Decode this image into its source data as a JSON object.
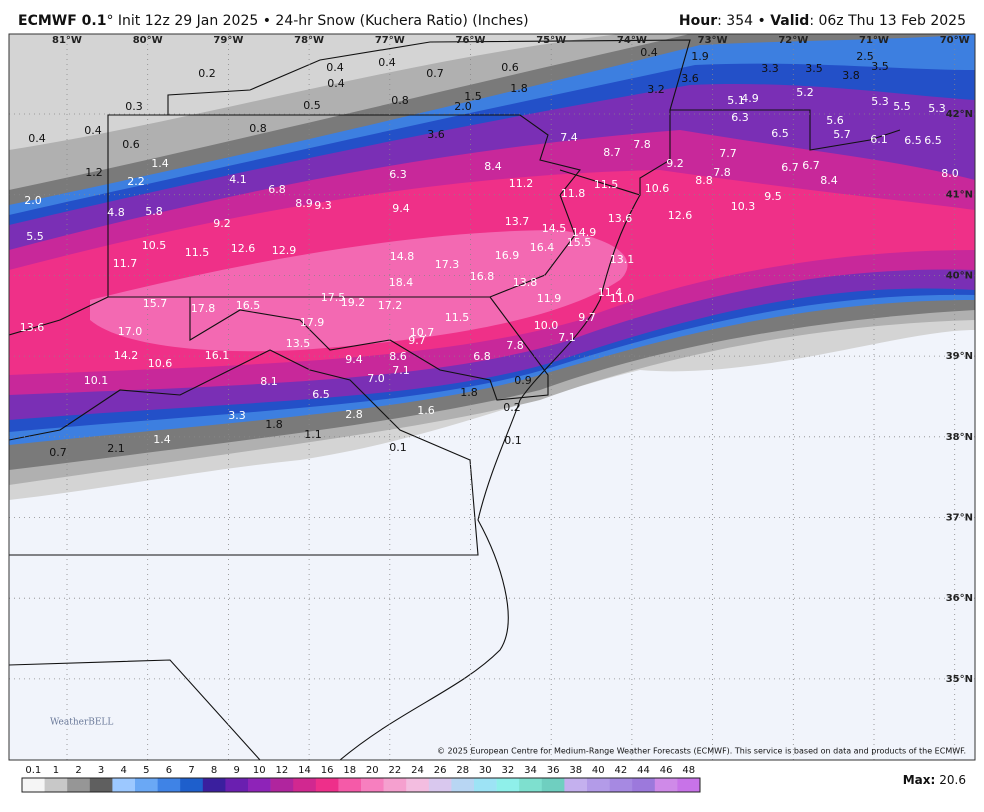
{
  "header": {
    "title_bold": "ECMWF 0.1",
    "title_rest": "° Init 12z 29 Jan 2025 • 24-hr Snow (Kuchera Ratio) (Inches)",
    "hour_key": "Hour",
    "hour_value": ": 354 • ",
    "valid_key": "Valid",
    "valid_value": ": 06z Thu 13 Feb 2025"
  },
  "map": {
    "longitudes": [
      "81°W",
      "80°W",
      "79°W",
      "78°W",
      "77°W",
      "76°W",
      "75°W",
      "74°W",
      "73°W",
      "72°W",
      "71°W",
      "70°W"
    ],
    "latitudes": [
      "42°N",
      "41°N",
      "40°N",
      "39°N",
      "38°N",
      "37°N",
      "36°N",
      "35°N"
    ],
    "snow_labels": [
      "0.4",
      "0.4",
      "0.4",
      "0.7",
      "0.6",
      "0.4",
      "1.9",
      "0.2",
      "0.5",
      "0.8",
      "2.0",
      "1.5",
      "1.8",
      "3.2",
      "3.6",
      "3.3",
      "3.5",
      "2.5",
      "3.5",
      "3.8",
      "0.3",
      "0.4",
      "0.4",
      "0.6",
      "0.8",
      "3.6",
      "5.1",
      "4.9",
      "5.2",
      "5.3",
      "5.5",
      "5.3",
      "6.3",
      "6.5",
      "5.6",
      "5.7",
      "6.1",
      "6.5",
      "6.5",
      "7.4",
      "8.7",
      "7.8",
      "9.2",
      "7.7",
      "6.7",
      "6.7",
      "8.0",
      "8.4",
      "7.8",
      "8.8",
      "10.6",
      "10.3",
      "9.5",
      "12.6",
      "13.6",
      "11.5",
      "11.8",
      "11.2",
      "8.4",
      "6.3",
      "1.4",
      "1.2",
      "2.2",
      "4.1",
      "6.8",
      "8.9",
      "9.3",
      "9.4",
      "2.0",
      "4.8",
      "5.8",
      "9.2",
      "13.7",
      "14.5",
      "14.9",
      "15.5",
      "16.4",
      "16.9",
      "13.1",
      "5.5",
      "10.5",
      "11.5",
      "12.6",
      "12.9",
      "14.8",
      "17.3",
      "16.8",
      "11.7",
      "18.4",
      "13.8",
      "11.4",
      "11.0",
      "11.9",
      "15.7",
      "17.8",
      "16.5",
      "17.5",
      "19.2",
      "17.2",
      "17.9",
      "9.7",
      "10.0",
      "11.5",
      "10.7",
      "9.7",
      "13.6",
      "17.0",
      "13.5",
      "7.1",
      "7.8",
      "14.2",
      "16.1",
      "8.6",
      "9.4",
      "6.8",
      "10.6",
      "7.1",
      "7.0",
      "10.1",
      "8.1",
      "0.9",
      "6.5",
      "1.8",
      "3.3",
      "2.8",
      "1.6",
      "0.2",
      "1.8",
      "1.1",
      "1.4",
      "0.1",
      "2.1",
      "0.7",
      "0.1"
    ],
    "logo": "WeatherBELL",
    "copyright": "© 2025 European Centre for Medium-Range Weather Forecasts (ECMWF). This service is based on data and products of the ECMWF."
  },
  "legend": {
    "levels": [
      0.1,
      1,
      2,
      3,
      4,
      5,
      6,
      7,
      8,
      9,
      10,
      12,
      14,
      16,
      18,
      20,
      22,
      24,
      26,
      28,
      30,
      32,
      34,
      36,
      38,
      40,
      42,
      44,
      46,
      48
    ],
    "colors": [
      "#f5f5f5",
      "#c8c8c8",
      "#969696",
      "#5f5f5f",
      "#9cc8ff",
      "#6aa8f5",
      "#3f83e6",
      "#1e5fcc",
      "#3a1f9e",
      "#6a1fb0",
      "#8e23b8",
      "#b0259e",
      "#d12890",
      "#ee2f8a",
      "#f55aa8",
      "#f77fbf",
      "#f5a0cf",
      "#f3bde0",
      "#d9c8ee",
      "#b8d6f3",
      "#9de3f5",
      "#8ff0ea",
      "#7ee0cf",
      "#6fcfc0",
      "#c4b0ee",
      "#b39be8",
      "#a689e2",
      "#9c79dc",
      "#cf8ae8",
      "#c873e8"
    ],
    "max_key": "Max:",
    "max_value": "20.6"
  }
}
